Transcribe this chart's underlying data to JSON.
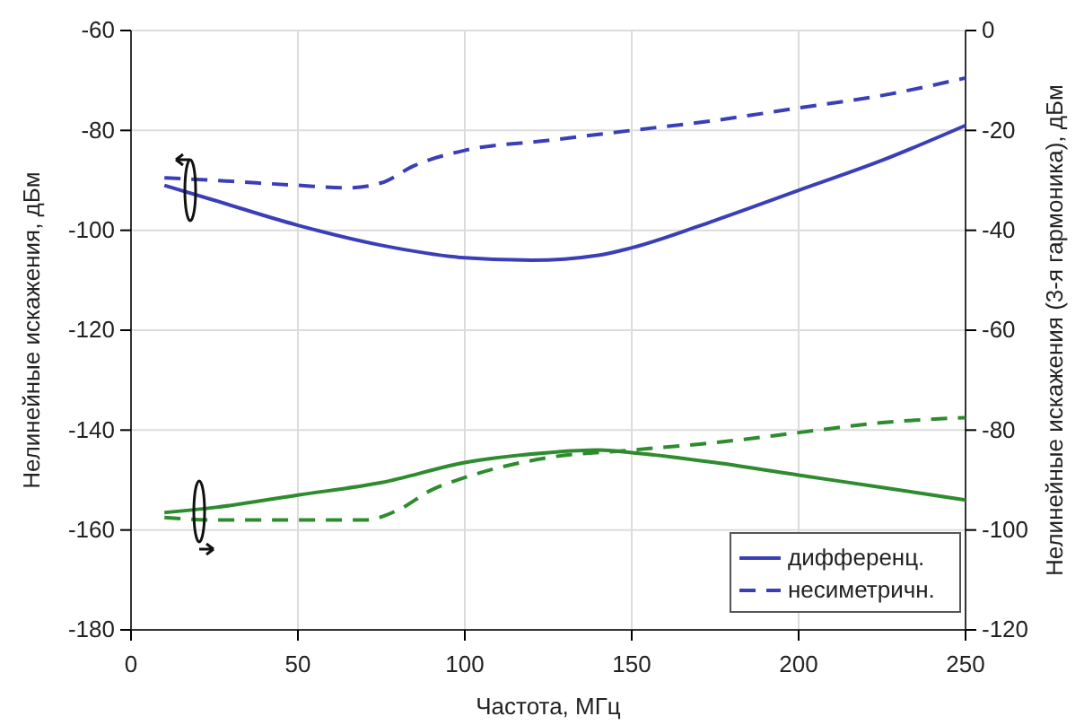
{
  "chart_data": {
    "type": "line",
    "xlabel": "Частота, МГц",
    "ylabel": "Нелинейные искажения, дБм",
    "y2label": "Нелинейные искажения (3-я гармоника), дБм",
    "xlim": [
      0,
      250
    ],
    "xticks": [
      0,
      50,
      100,
      150,
      200,
      250
    ],
    "ylim": [
      -180,
      -60
    ],
    "yticks": [
      -180,
      -160,
      -140,
      -120,
      -100,
      -80,
      -60
    ],
    "y2lim": [
      -120,
      0
    ],
    "y2ticks": [
      -120,
      -100,
      -80,
      -60,
      -40,
      -20,
      0
    ],
    "grid": true,
    "legend": "bottom right",
    "marker": "none",
    "series": [
      {
        "name": "дифференц.",
        "color": "#3a3fb8",
        "line_style": "solid",
        "x": [
          10,
          25,
          50,
          75,
          100,
          120,
          140,
          150,
          175,
          200,
          225,
          250
        ],
        "values": [
          -91,
          -94,
          -99,
          -103,
          -105.5,
          -106,
          -105,
          -103.5,
          -98,
          -92,
          -86,
          -79
        ]
      },
      {
        "name": "несиметричн.",
        "color": "#3a3fb8",
        "line_style": "dashed",
        "x": [
          10,
          25,
          50,
          65,
          75,
          85,
          100,
          125,
          150,
          175,
          200,
          225,
          250
        ],
        "values": [
          -89.5,
          -90,
          -91,
          -91.5,
          -90.5,
          -87,
          -84,
          -82,
          -80,
          -78,
          -75.5,
          -73,
          -69.5
        ]
      },
      {
        "color": "#2e8b2e",
        "line_style": "solid",
        "axis": "y2",
        "x": [
          10,
          25,
          50,
          75,
          100,
          125,
          140,
          150,
          175,
          200,
          225,
          250
        ],
        "values": [
          -96.5,
          -95.5,
          -93,
          -90.5,
          -86.5,
          -84.5,
          -84,
          -84.5,
          -86.5,
          -89,
          -91.5,
          -94
        ]
      },
      {
        "color": "#2e8b2e",
        "line_style": "dashed",
        "axis": "y2",
        "x": [
          10,
          25,
          50,
          70,
          80,
          90,
          100,
          125,
          150,
          175,
          200,
          225,
          250
        ],
        "values": [
          -97.5,
          -98,
          -98,
          -98,
          -96,
          -92,
          -89.5,
          -85.5,
          -84,
          -82.5,
          -80.5,
          -78.5,
          -77.5
        ]
      }
    ]
  }
}
